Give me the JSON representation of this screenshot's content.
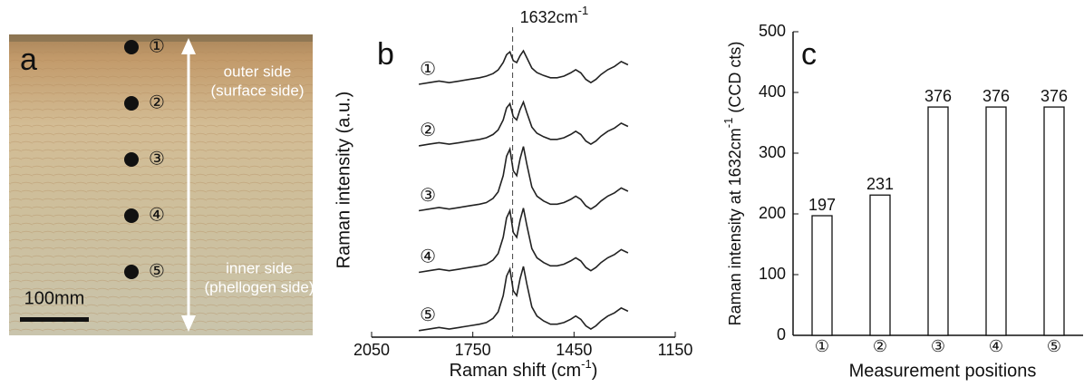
{
  "panel_a": {
    "label": "a",
    "markers": [
      "①",
      "②",
      "③",
      "④",
      "⑤"
    ],
    "outer": "outer side",
    "outer_note": "(surface side)",
    "inner": "inner side",
    "inner_note": "(phellogen side)",
    "scale": "100mm"
  },
  "chart_data": [
    {
      "type": "line",
      "panel": "b",
      "xlabel": "Raman shift (cm",
      "xlabel_sup": "-1",
      "xlabel_end": ")",
      "ylabel": "Raman intensity (a.u.)",
      "xlim": [
        2050,
        1150
      ],
      "xticks": [
        2050,
        1750,
        1450,
        1150
      ],
      "ylim": [
        -2,
        95
      ],
      "annotation": {
        "text": "1632cm",
        "sup": "-1",
        "x": 1632
      },
      "x": [
        1910,
        1880,
        1850,
        1820,
        1790,
        1760,
        1730,
        1710,
        1690,
        1675,
        1660,
        1650,
        1640,
        1630,
        1620,
        1610,
        1600,
        1590,
        1575,
        1560,
        1540,
        1520,
        1500,
        1480,
        1460,
        1445,
        1430,
        1415,
        1400,
        1385,
        1370,
        1350,
        1330,
        1310,
        1290
      ],
      "series": [
        {
          "name": "①",
          "color": "#222",
          "values": [
            76,
            76.5,
            77,
            76.5,
            77,
            77.5,
            78,
            78.5,
            79.3,
            80.4,
            82.7,
            85.1,
            86,
            83.3,
            82.7,
            84.8,
            86.3,
            84.2,
            81,
            79.6,
            78.7,
            78,
            78,
            78.5,
            79.5,
            80.5,
            79.5,
            77.5,
            76.5,
            77.5,
            79,
            80.5,
            81.5,
            83,
            82
          ]
        },
        {
          "name": "②",
          "color": "#222",
          "values": [
            57,
            57.5,
            58,
            57.5,
            58,
            58.5,
            59,
            59.5,
            60.5,
            61.9,
            65,
            68.7,
            70,
            66,
            65,
            68.2,
            70.5,
            67.3,
            62.8,
            60.9,
            59.8,
            59,
            59,
            59.5,
            60.5,
            61.5,
            60.5,
            58.5,
            57.5,
            58.5,
            60,
            61.5,
            62.5,
            64,
            63
          ]
        },
        {
          "name": "③",
          "color": "#222",
          "values": [
            37,
            37.5,
            38,
            37.5,
            38,
            38.5,
            39,
            39.5,
            40.8,
            42.8,
            47.8,
            53.8,
            56,
            49.3,
            47.8,
            53,
            56.8,
            51.5,
            44.3,
            41.5,
            40,
            39,
            39,
            39.5,
            40.5,
            41.5,
            40.5,
            38.5,
            37.5,
            38.5,
            40,
            41.5,
            42.5,
            44,
            43
          ]
        },
        {
          "name": "④",
          "color": "#222",
          "values": [
            18,
            18.5,
            19,
            18.5,
            19,
            19.5,
            20,
            20.5,
            21.8,
            23.8,
            28.8,
            34.8,
            37,
            30.3,
            28.8,
            34,
            37.8,
            32.5,
            25.3,
            22.5,
            21,
            20,
            20,
            20.5,
            21.5,
            22.5,
            21.5,
            19.5,
            18.5,
            19.5,
            21,
            22.5,
            23.5,
            25,
            24
          ]
        },
        {
          "name": "⑤",
          "color": "#222",
          "values": [
            0,
            0.5,
            1,
            0.5,
            1,
            1.5,
            2,
            2.5,
            3.8,
            5.8,
            10.8,
            16.8,
            19,
            12.3,
            10.8,
            16,
            19.8,
            14.5,
            7.3,
            4.5,
            3,
            2,
            2,
            2.5,
            3.5,
            4.5,
            3.5,
            1.5,
            0.5,
            1.5,
            3,
            4.5,
            5.5,
            7,
            6
          ]
        }
      ]
    },
    {
      "type": "bar",
      "panel": "c",
      "categories": [
        "①",
        "②",
        "③",
        "④",
        "⑤"
      ],
      "values": [
        197,
        231,
        376,
        376,
        376
      ],
      "color": "#ffffff",
      "edge": "#111111",
      "ylabel": "Raman intensity at 1632cm",
      "ylabel_sup": "-1",
      "ylabel_end": " (CCD cts)",
      "xlabel": "Measurement positions",
      "ylim": [
        0,
        500
      ],
      "yticks": [
        0,
        100,
        200,
        300,
        400,
        500
      ]
    }
  ]
}
